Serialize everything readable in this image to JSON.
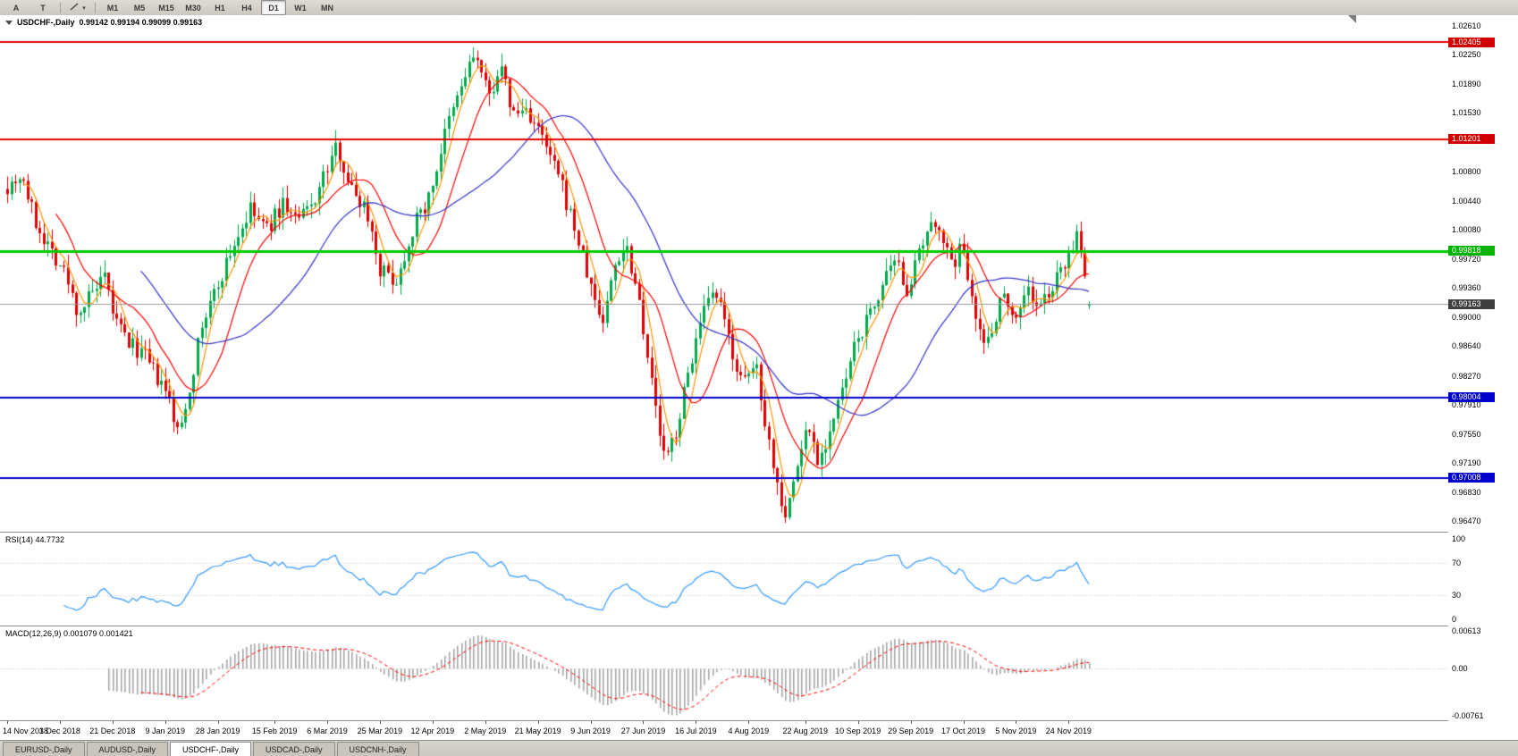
{
  "toolbar": {
    "annotate_label": "A",
    "text_label": "T",
    "timeframes": [
      "M1",
      "M5",
      "M15",
      "M30",
      "H1",
      "H4",
      "D1",
      "W1",
      "MN"
    ],
    "active_timeframe": "D1"
  },
  "chart_header": {
    "symbol_title": "USDCHF-,Daily",
    "ohlc_text": "0.99142 0.99194 0.99099 0.99163"
  },
  "price_axis": {
    "plain_labels": [
      {
        "text": "1.02610",
        "value": 1.0261
      },
      {
        "text": "1.02250",
        "value": 1.0225
      },
      {
        "text": "1.01890",
        "value": 1.0189
      },
      {
        "text": "1.01530",
        "value": 1.0153
      },
      {
        "text": "1.00800",
        "value": 1.008
      },
      {
        "text": "1.00440",
        "value": 1.0044
      },
      {
        "text": "1.00080",
        "value": 1.0008
      },
      {
        "text": "0.99720",
        "value": 0.9972
      },
      {
        "text": "0.99360",
        "value": 0.9936
      },
      {
        "text": "0.99000",
        "value": 0.99
      },
      {
        "text": "0.98640",
        "value": 0.9864
      },
      {
        "text": "0.98270",
        "value": 0.9827
      },
      {
        "text": "0.97910",
        "value": 0.9791
      },
      {
        "text": "0.97550",
        "value": 0.9755
      },
      {
        "text": "0.97190",
        "value": 0.9719
      },
      {
        "text": "0.96830",
        "value": 0.9683
      },
      {
        "text": "0.96470",
        "value": 0.9647
      }
    ],
    "badges": [
      {
        "text": "1.02405",
        "value": 1.02405,
        "color": "#d00000"
      },
      {
        "text": "1.01201",
        "value": 1.01201,
        "color": "#d00000"
      },
      {
        "text": "0.99818",
        "value": 0.99818,
        "color": "#00b300"
      },
      {
        "text": "0.99163",
        "value": 0.99163,
        "color": "#3f3f3f"
      },
      {
        "text": "0.98004",
        "value": 0.98004,
        "color": "#0000cc"
      },
      {
        "text": "0.97008",
        "value": 0.97008,
        "color": "#0000cc"
      }
    ]
  },
  "time_axis": [
    "14 Nov 2018",
    "3 Dec 2018",
    "21 Dec 2018",
    "9 Jan 2019",
    "28 Jan 2019",
    "15 Feb 2019",
    "6 Mar 2019",
    "25 Mar 2019",
    "12 Apr 2019",
    "2 May 2019",
    "21 May 2019",
    "9 Jun 2019",
    "27 Jun 2019",
    "16 Jul 2019",
    "4 Aug 2019",
    "22 Aug 2019",
    "10 Sep 2019",
    "29 Sep 2019",
    "17 Oct 2019",
    "5 Nov 2019",
    "24 Nov 2019"
  ],
  "rsi_panel": {
    "label": "RSI(14) 44.7732",
    "axis": [
      {
        "text": "100",
        "value": 100
      },
      {
        "text": "70",
        "value": 70
      },
      {
        "text": "30",
        "value": 30
      },
      {
        "text": "0",
        "value": 0
      }
    ]
  },
  "macd_panel": {
    "label": "MACD(12,26,9) 0.001079 0.001421",
    "axis": [
      {
        "text": "0.00613",
        "value": 0.00613
      },
      {
        "text": "0.00",
        "value": 0
      },
      {
        "text": "-0.00761",
        "value": -0.00761
      }
    ]
  },
  "tabs": {
    "items": [
      "EURUSD-,Daily",
      "AUDUSD-,Daily",
      "USDCHF-,Daily",
      "USDCAD-,Daily",
      "USDCNH-,Daily"
    ],
    "active": "USDCHF-,Daily"
  },
  "chart_data": {
    "type": "candlestick",
    "symbol": "USDCHF-",
    "timeframe": "Daily",
    "last_ohlc": {
      "open": 0.99142,
      "high": 0.99194,
      "low": 0.99099,
      "close": 0.99163
    },
    "y_range": [
      0.9634,
      1.0274
    ],
    "num_candles": 268,
    "up_color": "#00a94a",
    "down_color": "#e00000",
    "price_path": [
      [
        0.0,
        1.0063
      ],
      [
        0.013,
        1.0078
      ],
      [
        0.025,
        1.002
      ],
      [
        0.04,
        0.9985
      ],
      [
        0.052,
        0.9958
      ],
      [
        0.065,
        0.9905
      ],
      [
        0.078,
        0.9928
      ],
      [
        0.09,
        0.9945
      ],
      [
        0.1,
        0.9895
      ],
      [
        0.112,
        0.9868
      ],
      [
        0.125,
        0.9855
      ],
      [
        0.14,
        0.982
      ],
      [
        0.15,
        0.9795
      ],
      [
        0.158,
        0.9752
      ],
      [
        0.168,
        0.981
      ],
      [
        0.18,
        0.989
      ],
      [
        0.195,
        0.9942
      ],
      [
        0.21,
        0.9992
      ],
      [
        0.225,
        1.0032
      ],
      [
        0.24,
        1.0008
      ],
      [
        0.255,
        1.0042
      ],
      [
        0.268,
        1.0018
      ],
      [
        0.282,
        1.004
      ],
      [
        0.295,
        1.0082
      ],
      [
        0.305,
        1.0112
      ],
      [
        0.318,
        1.0058
      ],
      [
        0.332,
        1.0035
      ],
      [
        0.345,
        0.9958
      ],
      [
        0.36,
        0.9945
      ],
      [
        0.375,
        1.0012
      ],
      [
        0.39,
        1.0048
      ],
      [
        0.405,
        1.0128
      ],
      [
        0.42,
        1.0188
      ],
      [
        0.432,
        1.0228
      ],
      [
        0.445,
        1.017
      ],
      [
        0.455,
        1.0212
      ],
      [
        0.468,
        1.015
      ],
      [
        0.48,
        1.0158
      ],
      [
        0.495,
        1.0118
      ],
      [
        0.51,
        1.0072
      ],
      [
        0.525,
        1.0008
      ],
      [
        0.538,
        0.9942
      ],
      [
        0.55,
        0.9892
      ],
      [
        0.562,
        0.9968
      ],
      [
        0.572,
        0.9992
      ],
      [
        0.585,
        0.9918
      ],
      [
        0.598,
        0.9795
      ],
      [
        0.608,
        0.9718
      ],
      [
        0.62,
        0.9768
      ],
      [
        0.632,
        0.9848
      ],
      [
        0.645,
        0.9908
      ],
      [
        0.655,
        0.9928
      ],
      [
        0.668,
        0.9868
      ],
      [
        0.68,
        0.9812
      ],
      [
        0.692,
        0.9845
      ],
      [
        0.702,
        0.976
      ],
      [
        0.712,
        0.969
      ],
      [
        0.72,
        0.9655
      ],
      [
        0.73,
        0.9715
      ],
      [
        0.74,
        0.9768
      ],
      [
        0.75,
        0.9722
      ],
      [
        0.76,
        0.9758
      ],
      [
        0.772,
        0.9808
      ],
      [
        0.785,
        0.987
      ],
      [
        0.798,
        0.9905
      ],
      [
        0.81,
        0.9942
      ],
      [
        0.822,
        0.9965
      ],
      [
        0.832,
        0.9935
      ],
      [
        0.842,
        0.9972
      ],
      [
        0.852,
        1.0005
      ],
      [
        0.862,
        1.0018
      ],
      [
        0.872,
        0.996
      ],
      [
        0.882,
        0.9988
      ],
      [
        0.892,
        0.993
      ],
      [
        0.902,
        0.9862
      ],
      [
        0.912,
        0.9895
      ],
      [
        0.922,
        0.9935
      ],
      [
        0.932,
        0.9895
      ],
      [
        0.942,
        0.994
      ],
      [
        0.952,
        0.9908
      ],
      [
        0.962,
        0.9928
      ],
      [
        0.972,
        0.995
      ],
      [
        0.982,
        0.9985
      ],
      [
        0.99,
        0.9998
      ],
      [
        1.0,
        0.9916
      ]
    ],
    "hlines": [
      {
        "value": 1.02405,
        "color": "#e00000",
        "width": 2
      },
      {
        "value": 1.01201,
        "color": "#e00000",
        "width": 2
      },
      {
        "value": 0.99818,
        "color": "#00cc00",
        "width": 3
      },
      {
        "value": 0.99163,
        "color": "#9a9a9a",
        "width": 1
      },
      {
        "value": 0.98004,
        "color": "#0000cc",
        "width": 2
      },
      {
        "value": 0.97008,
        "color": "#0000cc",
        "width": 2
      }
    ],
    "moving_averages": [
      {
        "period": 5,
        "color": "#ff9500"
      },
      {
        "period": 13,
        "color": "#ff0000"
      },
      {
        "period": 34,
        "color": "#3333cc"
      }
    ],
    "rsi": {
      "period": 14,
      "current": 44.7732,
      "levels": [
        70,
        30
      ],
      "color": "#3399ff",
      "range": [
        0,
        100
      ]
    },
    "macd": {
      "fast": 12,
      "slow": 26,
      "signal": 9,
      "current_macd": 0.001079,
      "current_signal": 0.001421,
      "range": [
        -0.00761,
        0.00613
      ],
      "hist_color": "#a8a8a8",
      "signal_color": "#ff0000"
    }
  }
}
